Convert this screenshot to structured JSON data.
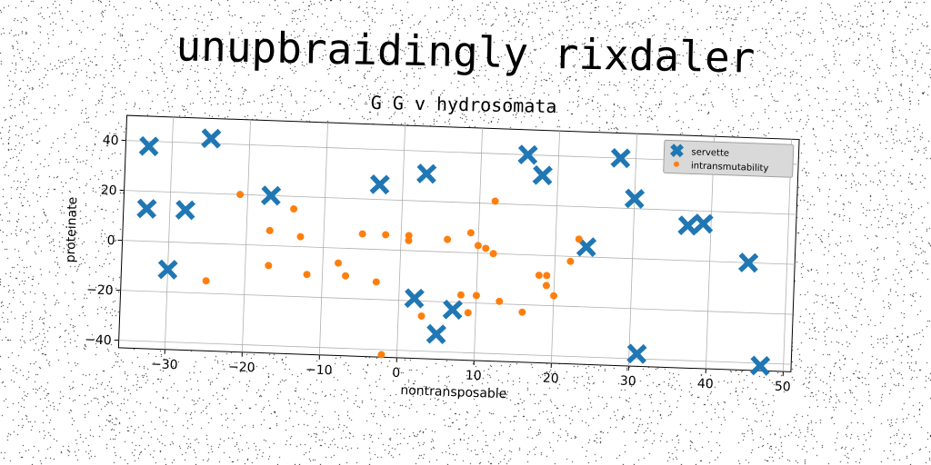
{
  "title": "unupbraidingly rixdaler",
  "chart_data": {
    "type": "scatter",
    "subtitle": "G G v hydrosomata",
    "xlabel": "nontransposable",
    "ylabel": "proteinate",
    "xlim": [
      -36,
      51
    ],
    "ylim": [
      -43,
      50
    ],
    "xticks": [
      -30,
      -20,
      -10,
      0,
      10,
      20,
      30,
      40,
      50
    ],
    "yticks": [
      -40,
      -20,
      0,
      20,
      40
    ],
    "grid": true,
    "legend_position": "top-right",
    "series": [
      {
        "name": "servette",
        "color": "#1f77b4",
        "marker": "x",
        "points": [
          [
            -33,
            38
          ],
          [
            -25,
            42
          ],
          [
            -33,
            13
          ],
          [
            -28,
            13
          ],
          [
            -30,
            -11
          ],
          [
            -17,
            20
          ],
          [
            -3,
            26
          ],
          [
            3,
            31
          ],
          [
            16,
            40
          ],
          [
            18,
            32
          ],
          [
            2,
            -19
          ],
          [
            5,
            -33
          ],
          [
            7,
            -23
          ],
          [
            24,
            4
          ],
          [
            28,
            40
          ],
          [
            30,
            24
          ],
          [
            31,
            -38
          ],
          [
            37,
            14
          ],
          [
            39,
            15
          ],
          [
            45,
            0
          ],
          [
            47,
            -41
          ]
        ]
      },
      {
        "name": "intransmutability",
        "color": "#ff7f0e",
        "marker": "o",
        "points": [
          [
            -21,
            20
          ],
          [
            -17,
            6
          ],
          [
            -14,
            15
          ],
          [
            -13,
            4
          ],
          [
            -17,
            -8
          ],
          [
            -12,
            -11
          ],
          [
            -8,
            -6
          ],
          [
            -7,
            -11
          ],
          [
            -5,
            6
          ],
          [
            -2,
            6
          ],
          [
            1,
            6
          ],
          [
            1,
            4
          ],
          [
            -3,
            -13
          ],
          [
            6,
            5
          ],
          [
            9,
            8
          ],
          [
            10,
            3
          ],
          [
            11,
            2
          ],
          [
            12,
            0
          ],
          [
            12,
            21
          ],
          [
            22,
            -2
          ],
          [
            23,
            7
          ],
          [
            18,
            -8
          ],
          [
            19,
            -8
          ],
          [
            19,
            -12
          ],
          [
            20,
            -16
          ],
          [
            16,
            -23
          ],
          [
            13,
            -19
          ],
          [
            10,
            -17
          ],
          [
            8,
            -17
          ],
          [
            9,
            -24
          ],
          [
            3,
            -26
          ],
          [
            -2,
            -42
          ],
          [
            -25,
            -15
          ]
        ]
      }
    ]
  }
}
